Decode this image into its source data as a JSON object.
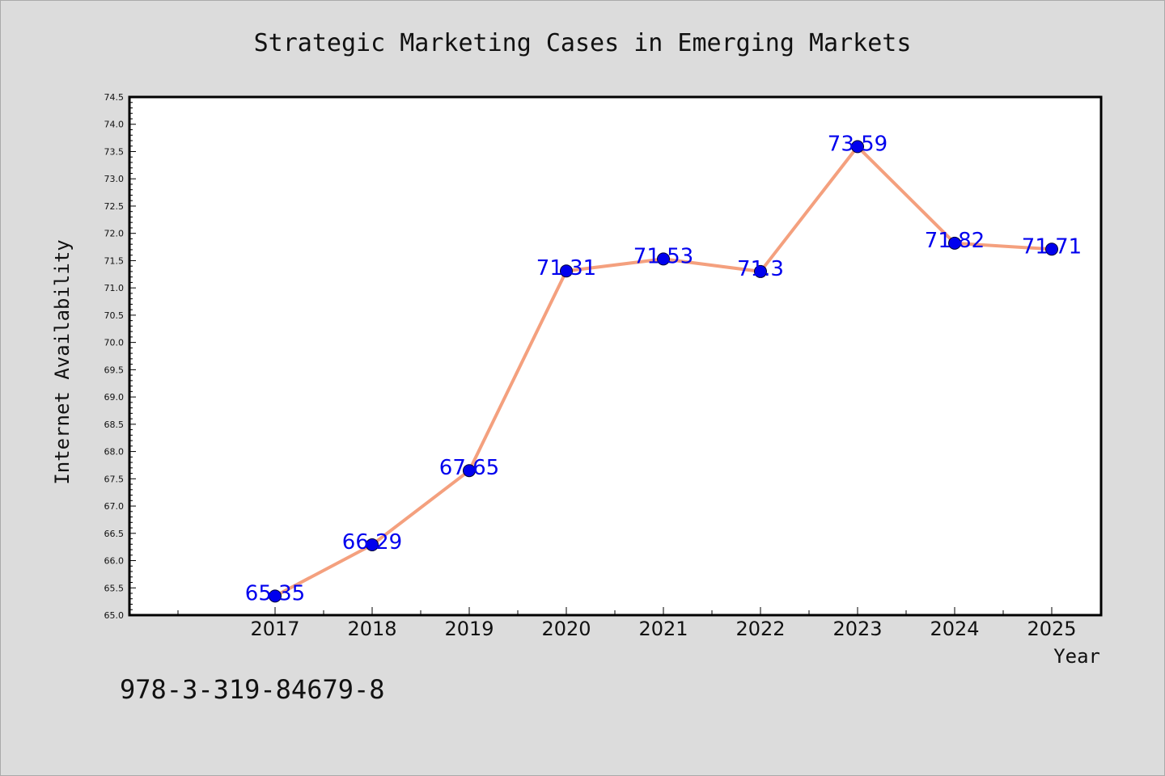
{
  "chart_data": {
    "type": "line",
    "title": "Strategic Marketing Cases in Emerging Markets",
    "xlabel": "Year",
    "ylabel": "Internet Availability",
    "categories": [
      "2017",
      "2018",
      "2019",
      "2020",
      "2021",
      "2022",
      "2023",
      "2024",
      "2025"
    ],
    "series": [
      {
        "values": [
          65.35,
          66.29,
          67.65,
          71.31,
          71.53,
          71.3,
          73.59,
          71.82,
          71.71
        ],
        "data_labels": [
          "65.35",
          "66.29",
          "67.65",
          "71.31",
          "71.53",
          "71.3",
          "73.59",
          "71.82",
          "71.71"
        ]
      }
    ],
    "ylim": [
      65.0,
      74.5
    ],
    "y_ticks": [
      "65.0",
      "65.5",
      "66.0",
      "66.5",
      "67.0",
      "67.5",
      "68.0",
      "68.5",
      "69.0",
      "69.5",
      "70.0",
      "70.5",
      "71.0",
      "71.5",
      "72.0",
      "72.5",
      "73.0",
      "73.5",
      "74.0",
      "74.5"
    ],
    "grid": false,
    "legend": "none",
    "colors": {
      "line": "#f4a07e",
      "marker": "#0000ee",
      "data_label": "#0000ee",
      "plot_background": "#ffffff",
      "figure_background": "#dcdcdc"
    }
  },
  "footer_code": "978-3-319-84679-8"
}
